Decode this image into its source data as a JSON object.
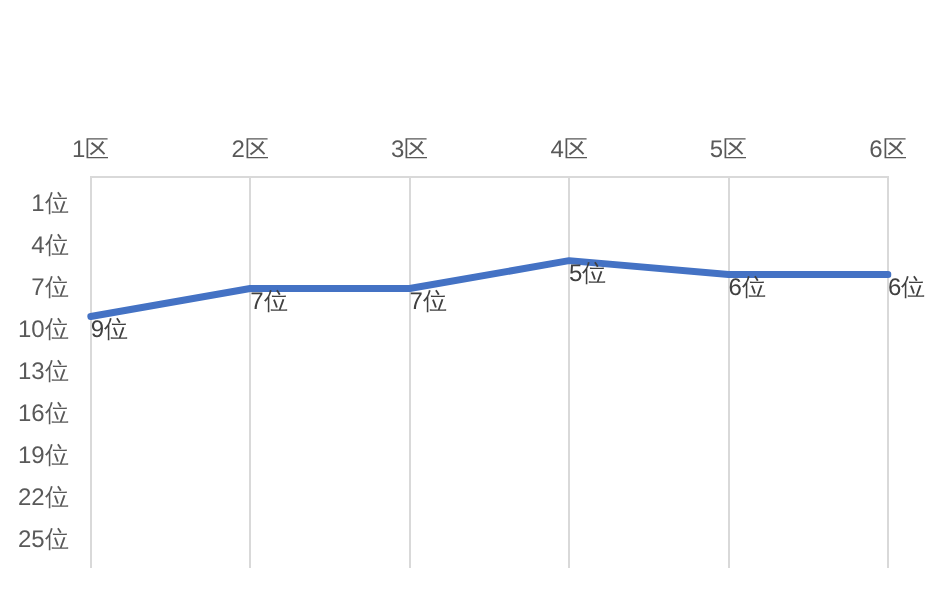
{
  "chart_data": {
    "type": "line",
    "categories": [
      "1区",
      "2区",
      "3区",
      "4区",
      "5区",
      "6区"
    ],
    "series": [
      {
        "color": "#4472c4",
        "values": [
          9,
          7,
          7,
          5,
          6,
          6
        ],
        "value_labels": [
          "9位",
          "7位",
          "7位",
          "5位",
          "6位",
          "6位"
        ]
      }
    ],
    "ylim": [
      27,
      -1
    ],
    "yticks": [
      {
        "value": 1,
        "label": "1位"
      },
      {
        "value": 4,
        "label": "4位"
      },
      {
        "value": 7,
        "label": "7位"
      },
      {
        "value": 10,
        "label": "10位"
      },
      {
        "value": 13,
        "label": "13位"
      },
      {
        "value": 16,
        "label": "16位"
      },
      {
        "value": 19,
        "label": "19位"
      },
      {
        "value": 22,
        "label": "22位"
      },
      {
        "value": 25,
        "label": "25位"
      }
    ],
    "grid": "x",
    "legend": false,
    "marker": "none",
    "line_style": "solid"
  }
}
